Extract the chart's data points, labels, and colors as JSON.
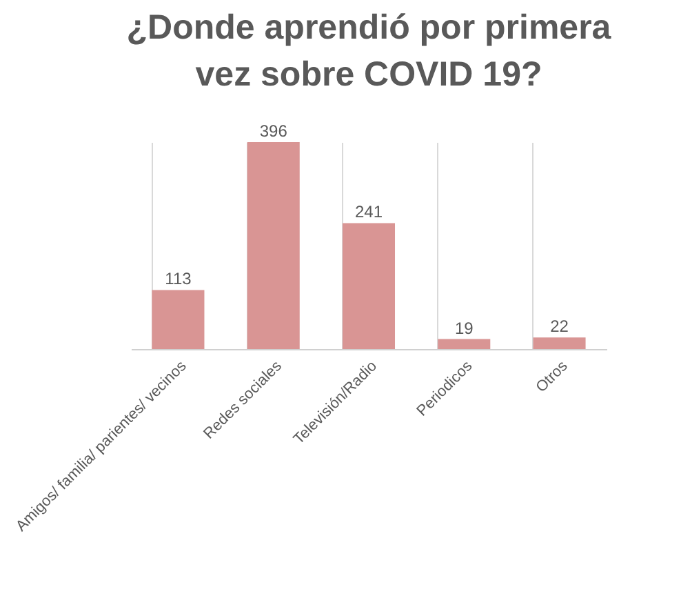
{
  "chart_data": {
    "type": "bar",
    "title": [
      "¿Donde aprendió por primera",
      "vez sobre COVID 19?"
    ],
    "categories": [
      "Amigos/ familia/ parientes/ vecinos",
      "Redes sociales",
      "Televisión/Radio",
      "Periodicos",
      "Otros"
    ],
    "values": [
      113,
      396,
      241,
      19,
      22
    ],
    "color": "#d99594",
    "data_labels": true,
    "grid": "x"
  }
}
